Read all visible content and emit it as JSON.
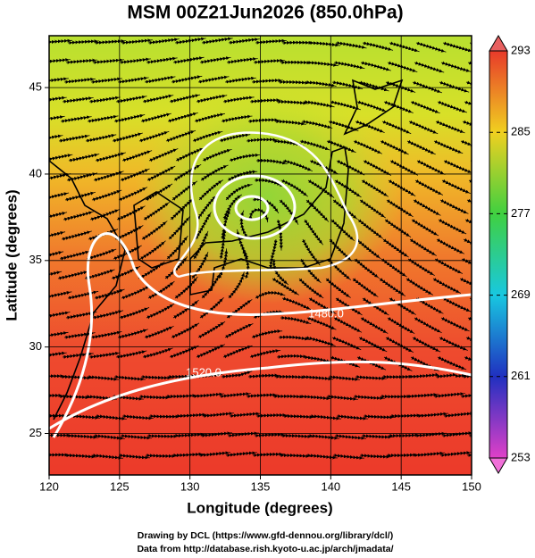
{
  "chart_data": {
    "type": "contour-map",
    "title": "MSM 00Z21Jun2026 (850.0hPa)",
    "xlabel": "Longitude (degrees)",
    "ylabel": "Latitude  (degrees)",
    "xlim": [
      120,
      150
    ],
    "ylim": [
      22.6,
      48
    ],
    "xticks": [
      120,
      125,
      130,
      135,
      140,
      145,
      150
    ],
    "yticks": [
      25,
      30,
      35,
      40,
      45
    ],
    "grid": true,
    "colorbar": {
      "lim": [
        253,
        293
      ],
      "ticks": [
        253,
        261,
        269,
        277,
        285,
        293
      ]
    },
    "contour_labels": [
      "1480.0",
      "1520.0"
    ],
    "footer": [
      "Drawing by DCL (https://www.gfd-dennou.org/library/dcl/)",
      "Data from http://database.rish.kyoto-u.ac.jp/arch/jmadata/"
    ]
  }
}
